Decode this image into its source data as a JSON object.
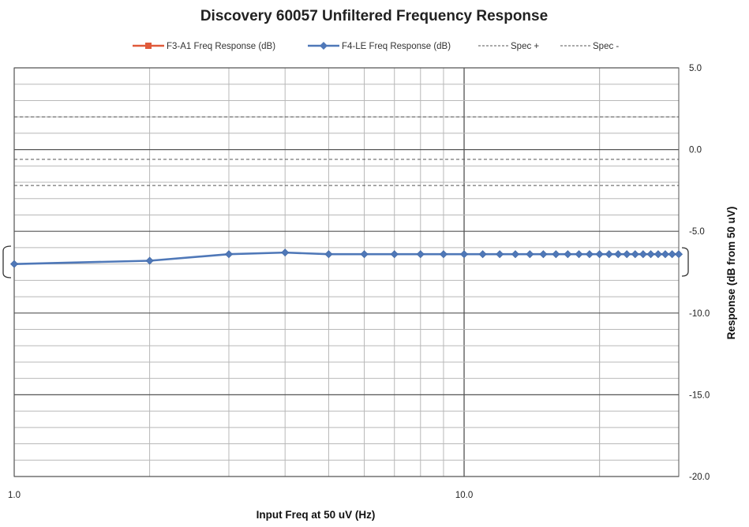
{
  "chart_data": {
    "type": "line",
    "title": "Discovery 60057 Unfiltered Frequency Response",
    "xlabel": "Input Freq at 50 uV (Hz)",
    "ylabel": "Response (dB from 50 uV)",
    "x_scale": "log",
    "xlim": [
      1.0,
      30.0
    ],
    "ylim": [
      -20.0,
      5.0
    ],
    "x_ticks": [
      {
        "value": 1.0,
        "label": "1.0"
      },
      {
        "value": 10.0,
        "label": "10.0"
      }
    ],
    "y_ticks": [
      {
        "value": 5.0,
        "label": "5.0"
      },
      {
        "value": 0.0,
        "label": "0.0"
      },
      {
        "value": -5.0,
        "label": "-5.0"
      },
      {
        "value": -10.0,
        "label": "-10.0"
      },
      {
        "value": -15.0,
        "label": "-15.0"
      },
      {
        "value": -20.0,
        "label": "-20.0"
      }
    ],
    "y_axis_side": "right",
    "grid": true,
    "legend_placement": "top",
    "colors": {
      "f3": "#e05a3a",
      "f4": "#4f78b8",
      "spec": "#555555",
      "grid": "#b8b8b8"
    },
    "series": [
      {
        "name": "F3-A1 Freq Response (dB)",
        "marker": "square",
        "x": [],
        "y": []
      },
      {
        "name": "F4-LE Freq Response (dB)",
        "marker": "diamond",
        "x": [
          1,
          2,
          3,
          4,
          5,
          6,
          7,
          8,
          9,
          10,
          11,
          12,
          13,
          14,
          15,
          16,
          17,
          18,
          19,
          20,
          21,
          22,
          23,
          24,
          25,
          26,
          27,
          28,
          29,
          30
        ],
        "y": [
          -7.0,
          -6.8,
          -6.4,
          -6.3,
          -6.4,
          -6.4,
          -6.4,
          -6.4,
          -6.4,
          -6.4,
          -6.4,
          -6.4,
          -6.4,
          -6.4,
          -6.4,
          -6.4,
          -6.4,
          -6.4,
          -6.4,
          -6.4,
          -6.4,
          -6.4,
          -6.4,
          -6.4,
          -6.4,
          -6.4,
          -6.4,
          -6.4,
          -6.4,
          -6.4
        ]
      },
      {
        "name": "Spec +",
        "style": "dashed",
        "x": [
          1,
          30
        ],
        "y": [
          2.0,
          2.0
        ]
      },
      {
        "name": "Spec -",
        "style": "dashed",
        "x": [
          1,
          30
        ],
        "y": [
          -0.6,
          -0.6
        ]
      }
    ],
    "extra_dashed_line_y": -2.2
  }
}
